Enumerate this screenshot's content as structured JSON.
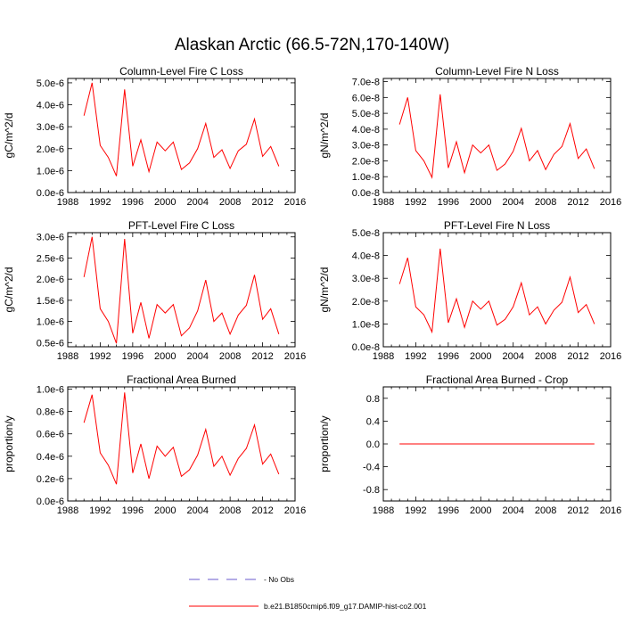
{
  "figure": {
    "title": "Alaskan Arctic (66.5-72N,170-140W)",
    "legend": [
      {
        "label": "- No Obs",
        "color": "#6a5acd",
        "style": "dashed"
      },
      {
        "label": "b.e21.B1850cmip6.f09_g17.DAMIP-hist-co2.001",
        "color": "#ff0000",
        "style": "solid"
      }
    ]
  },
  "chart_data": [
    {
      "type": "line",
      "title": "Column-Level Fire C Loss",
      "ylabel": "gC/m^2/d",
      "xlim": [
        1988,
        2016
      ],
      "ylim": [
        0,
        5.2e-06
      ],
      "xticks": [
        "1988",
        "1992",
        "1996",
        "2000",
        "2004",
        "2008",
        "2012",
        "2016"
      ],
      "xtick_values": [
        1988,
        1992,
        1996,
        2000,
        2004,
        2008,
        2012,
        2016
      ],
      "yticks": [
        "0.0e-6",
        "1.0e-6",
        "2.0e-6",
        "3.0e-6",
        "4.0e-6",
        "5.0e-6"
      ],
      "ytick_values": [
        0,
        1e-06,
        2e-06,
        3e-06,
        4e-06,
        5e-06
      ],
      "color": "#ff0000",
      "series": [
        {
          "x": [
            1990,
            1991,
            1992,
            1993,
            1994,
            1995,
            1996,
            1997,
            1998,
            1999,
            2000,
            2001,
            2002,
            2003,
            2004,
            2005,
            2006,
            2007,
            2008,
            2009,
            2010,
            2011,
            2012,
            2013,
            2014
          ],
          "values": [
            3.5e-06,
            5e-06,
            2.15e-06,
            1.6e-06,
            7.5e-07,
            4.7e-06,
            1.2e-06,
            2.4e-06,
            9.5e-07,
            2.3e-06,
            1.9e-06,
            2.3e-06,
            1.05e-06,
            1.35e-06,
            2e-06,
            3.15e-06,
            1.6e-06,
            1.95e-06,
            1.1e-06,
            1.9e-06,
            2.2e-06,
            3.35e-06,
            1.65e-06,
            2.1e-06,
            1.2e-06
          ]
        }
      ]
    },
    {
      "type": "line",
      "title": "Column-Level Fire N Loss",
      "ylabel": "gN/m^2/d",
      "xlim": [
        1988,
        2016
      ],
      "ylim": [
        0,
        7.2e-08
      ],
      "xticks": [
        "1988",
        "1992",
        "1996",
        "2000",
        "2004",
        "2008",
        "2012",
        "2016"
      ],
      "xtick_values": [
        1988,
        1992,
        1996,
        2000,
        2004,
        2008,
        2012,
        2016
      ],
      "yticks": [
        "0.0e-8",
        "1.0e-8",
        "2.0e-8",
        "3.0e-8",
        "4.0e-8",
        "5.0e-8",
        "6.0e-8",
        "7.0e-8"
      ],
      "ytick_values": [
        0,
        1e-08,
        2e-08,
        3e-08,
        4e-08,
        5e-08,
        6e-08,
        7e-08
      ],
      "color": "#ff0000",
      "series": [
        {
          "x": [
            1990,
            1991,
            1992,
            1993,
            1994,
            1995,
            1996,
            1997,
            1998,
            1999,
            2000,
            2001,
            2002,
            2003,
            2004,
            2005,
            2006,
            2007,
            2008,
            2009,
            2010,
            2011,
            2012,
            2013,
            2014
          ],
          "values": [
            4.3e-08,
            6e-08,
            2.65e-08,
            2e-08,
            9.5e-09,
            6.2e-08,
            1.55e-08,
            3.2e-08,
            1.25e-08,
            3e-08,
            2.5e-08,
            3e-08,
            1.4e-08,
            1.8e-08,
            2.6e-08,
            4.05e-08,
            2e-08,
            2.65e-08,
            1.45e-08,
            2.4e-08,
            2.9e-08,
            4.35e-08,
            2.15e-08,
            2.75e-08,
            1.5e-08
          ]
        }
      ]
    },
    {
      "type": "line",
      "title": "PFT-Level Fire C Loss",
      "ylabel": "gC/m^2/d",
      "xlim": [
        1988,
        2016
      ],
      "ylim": [
        4e-07,
        3.1e-06
      ],
      "xticks": [
        "1988",
        "1992",
        "1996",
        "2000",
        "2004",
        "2008",
        "2012",
        "2016"
      ],
      "xtick_values": [
        1988,
        1992,
        1996,
        2000,
        2004,
        2008,
        2012,
        2016
      ],
      "yticks": [
        "0.5e-6",
        "1.0e-6",
        "1.5e-6",
        "2.0e-6",
        "2.5e-6",
        "3.0e-6"
      ],
      "ytick_values": [
        5e-07,
        1e-06,
        1.5e-06,
        2e-06,
        2.5e-06,
        3e-06
      ],
      "color": "#ff0000",
      "series": [
        {
          "x": [
            1990,
            1991,
            1992,
            1993,
            1994,
            1995,
            1996,
            1997,
            1998,
            1999,
            2000,
            2001,
            2002,
            2003,
            2004,
            2005,
            2006,
            2007,
            2008,
            2009,
            2010,
            2011,
            2012,
            2013,
            2014
          ],
          "values": [
            2.05e-06,
            3e-06,
            1.3e-06,
            1e-06,
            4.8e-07,
            2.95e-06,
            7.2e-07,
            1.45e-06,
            6e-07,
            1.4e-06,
            1.2e-06,
            1.4e-06,
            6.6e-07,
            8.5e-07,
            1.25e-06,
            1.98e-06,
            1e-06,
            1.2e-06,
            7e-07,
            1.15e-06,
            1.38e-06,
            2.1e-06,
            1.05e-06,
            1.3e-06,
            7e-07
          ]
        }
      ]
    },
    {
      "type": "line",
      "title": "PFT-Level Fire N Loss",
      "ylabel": "gN/m^2/d",
      "xlim": [
        1988,
        2016
      ],
      "ylim": [
        0,
        5e-08
      ],
      "xticks": [
        "1988",
        "1992",
        "1996",
        "2000",
        "2004",
        "2008",
        "2012",
        "2016"
      ],
      "xtick_values": [
        1988,
        1992,
        1996,
        2000,
        2004,
        2008,
        2012,
        2016
      ],
      "yticks": [
        "0.0e-8",
        "1.0e-8",
        "2.0e-8",
        "3.0e-8",
        "4.0e-8",
        "5.0e-8"
      ],
      "ytick_values": [
        0,
        1e-08,
        2e-08,
        3e-08,
        4e-08,
        5e-08
      ],
      "color": "#ff0000",
      "series": [
        {
          "x": [
            1990,
            1991,
            1992,
            1993,
            1994,
            1995,
            1996,
            1997,
            1998,
            1999,
            2000,
            2001,
            2002,
            2003,
            2004,
            2005,
            2006,
            2007,
            2008,
            2009,
            2010,
            2011,
            2012,
            2013,
            2014
          ],
          "values": [
            2.75e-08,
            3.9e-08,
            1.75e-08,
            1.4e-08,
            6.5e-09,
            4.3e-08,
            1.05e-08,
            2.1e-08,
            8.5e-09,
            2e-08,
            1.65e-08,
            2e-08,
            9.5e-09,
            1.2e-08,
            1.75e-08,
            2.8e-08,
            1.4e-08,
            1.75e-08,
            1e-08,
            1.6e-08,
            1.95e-08,
            3.05e-08,
            1.5e-08,
            1.85e-08,
            1e-08
          ]
        }
      ]
    },
    {
      "type": "line",
      "title": "Fractional Area Burned",
      "ylabel": "proportion/y",
      "xlim": [
        1988,
        2016
      ],
      "ylim": [
        0,
        1.02e-06
      ],
      "xticks": [
        "1988",
        "1992",
        "1996",
        "2000",
        "2004",
        "2008",
        "2012",
        "2016"
      ],
      "xtick_values": [
        1988,
        1992,
        1996,
        2000,
        2004,
        2008,
        2012,
        2016
      ],
      "yticks": [
        "0.0e-6",
        "0.2e-6",
        "0.4e-6",
        "0.6e-6",
        "0.8e-6",
        "1.0e-6"
      ],
      "ytick_values": [
        0,
        2e-07,
        4e-07,
        6e-07,
        8e-07,
        1e-06
      ],
      "color": "#ff0000",
      "series": [
        {
          "x": [
            1990,
            1991,
            1992,
            1993,
            1994,
            1995,
            1996,
            1997,
            1998,
            1999,
            2000,
            2001,
            2002,
            2003,
            2004,
            2005,
            2006,
            2007,
            2008,
            2009,
            2010,
            2011,
            2012,
            2013,
            2014
          ],
          "values": [
            7e-07,
            9.5e-07,
            4.3e-07,
            3.2e-07,
            1.5e-07,
            9.7e-07,
            2.5e-07,
            5.1e-07,
            2e-07,
            4.9e-07,
            4e-07,
            4.8e-07,
            2.2e-07,
            2.8e-07,
            4.1e-07,
            6.4e-07,
            3.1e-07,
            4e-07,
            2.3e-07,
            3.8e-07,
            4.7e-07,
            6.8e-07,
            3.3e-07,
            4.2e-07,
            2.4e-07
          ]
        }
      ]
    },
    {
      "type": "line",
      "title": "Fractional Area Burned - Crop",
      "ylabel": "proportion/y",
      "xlim": [
        1988,
        2016
      ],
      "ylim": [
        -1.0,
        1.0
      ],
      "xticks": [
        "1988",
        "1992",
        "1996",
        "2000",
        "2004",
        "2008",
        "2012",
        "2016"
      ],
      "xtick_values": [
        1988,
        1992,
        1996,
        2000,
        2004,
        2008,
        2012,
        2016
      ],
      "yticks": [
        "-0.8",
        "-0.4",
        "0.0",
        "0.4",
        "0.8"
      ],
      "ytick_values": [
        -0.8,
        -0.4,
        0.0,
        0.4,
        0.8
      ],
      "color": "#ff0000",
      "series": [
        {
          "x": [
            1990,
            1991,
            1992,
            1993,
            1994,
            1995,
            1996,
            1997,
            1998,
            1999,
            2000,
            2001,
            2002,
            2003,
            2004,
            2005,
            2006,
            2007,
            2008,
            2009,
            2010,
            2011,
            2012,
            2013,
            2014
          ],
          "values": [
            0,
            0,
            0,
            0,
            0,
            0,
            0,
            0,
            0,
            0,
            0,
            0,
            0,
            0,
            0,
            0,
            0,
            0,
            0,
            0,
            0,
            0,
            0,
            0,
            0
          ]
        }
      ]
    }
  ]
}
